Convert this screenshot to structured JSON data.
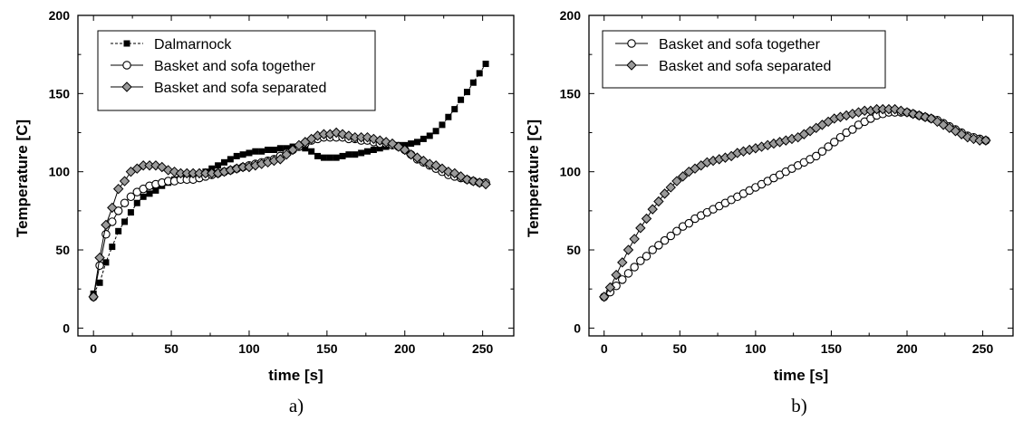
{
  "chart_data": [
    {
      "type": "line",
      "panel_label": "a)",
      "xlabel": "time [s]",
      "ylabel": "Temperature [C]",
      "xlim": [
        -10,
        270
      ],
      "ylim": [
        -5,
        200
      ],
      "xticks": [
        0,
        50,
        100,
        150,
        200,
        250
      ],
      "yticks": [
        0,
        50,
        100,
        150,
        200
      ],
      "grid": false,
      "legend_position": "top-left",
      "series": [
        {
          "name": "Dalmarnock",
          "marker": "square",
          "line_style": "dashed",
          "x": [
            0,
            4,
            8,
            12,
            16,
            20,
            24,
            28,
            32,
            36,
            40,
            44,
            48,
            52,
            56,
            60,
            64,
            68,
            72,
            76,
            80,
            84,
            88,
            92,
            96,
            100,
            104,
            108,
            112,
            116,
            120,
            124,
            128,
            132,
            136,
            140,
            144,
            148,
            152,
            156,
            160,
            164,
            168,
            172,
            176,
            180,
            184,
            188,
            192,
            196,
            200,
            204,
            208,
            212,
            216,
            220,
            224,
            228,
            232,
            236,
            240,
            244,
            248,
            252
          ],
          "y": [
            22,
            29,
            42,
            52,
            62,
            68,
            74,
            80,
            84,
            86,
            88,
            91,
            93,
            95,
            96,
            96,
            97,
            98,
            100,
            102,
            104,
            106,
            108,
            110,
            111,
            112,
            113,
            113,
            114,
            114,
            115,
            115,
            116,
            116,
            115,
            113,
            110,
            109,
            109,
            109,
            110,
            111,
            111,
            112,
            113,
            114,
            115,
            116,
            117,
            117,
            117,
            118,
            119,
            121,
            123,
            126,
            130,
            135,
            140,
            146,
            151,
            157,
            163,
            169
          ]
        },
        {
          "name": "Basket and sofa together",
          "marker": "open-circle",
          "line_style": "solid",
          "x": [
            0,
            4,
            8,
            12,
            16,
            20,
            24,
            28,
            32,
            36,
            40,
            44,
            48,
            52,
            56,
            60,
            64,
            68,
            72,
            76,
            80,
            84,
            88,
            92,
            96,
            100,
            104,
            108,
            112,
            116,
            120,
            124,
            128,
            132,
            136,
            140,
            144,
            148,
            152,
            156,
            160,
            164,
            168,
            172,
            176,
            180,
            184,
            188,
            192,
            196,
            200,
            204,
            208,
            212,
            216,
            220,
            224,
            228,
            232,
            236,
            240,
            244,
            248,
            252
          ],
          "y": [
            20,
            40,
            60,
            68,
            75,
            80,
            84,
            87,
            89,
            91,
            92,
            93,
            94,
            94,
            95,
            95,
            95,
            96,
            97,
            98,
            99,
            100,
            101,
            102,
            103,
            104,
            105,
            106,
            107,
            108,
            110,
            112,
            114,
            116,
            118,
            120,
            121,
            122,
            122,
            122,
            122,
            121,
            121,
            120,
            120,
            119,
            118,
            118,
            117,
            116,
            114,
            111,
            108,
            106,
            104,
            102,
            100,
            98,
            97,
            96,
            95,
            94,
            93,
            93
          ]
        },
        {
          "name": "Basket and sofa separated",
          "marker": "gray-diamond",
          "line_style": "solid",
          "x": [
            0,
            4,
            8,
            12,
            16,
            20,
            24,
            28,
            32,
            36,
            40,
            44,
            48,
            52,
            56,
            60,
            64,
            68,
            72,
            76,
            80,
            84,
            88,
            92,
            96,
            100,
            104,
            108,
            112,
            116,
            120,
            124,
            128,
            132,
            136,
            140,
            144,
            148,
            152,
            156,
            160,
            164,
            168,
            172,
            176,
            180,
            184,
            188,
            192,
            196,
            200,
            204,
            208,
            212,
            216,
            220,
            224,
            228,
            232,
            236,
            240,
            244,
            248,
            252
          ],
          "y": [
            20,
            45,
            66,
            77,
            89,
            94,
            100,
            102,
            104,
            104,
            104,
            103,
            101,
            100,
            99,
            99,
            99,
            99,
            99,
            99,
            99,
            100,
            101,
            102,
            103,
            103,
            104,
            105,
            106,
            107,
            108,
            111,
            114,
            117,
            119,
            121,
            123,
            124,
            124,
            125,
            124,
            123,
            122,
            122,
            122,
            121,
            120,
            119,
            118,
            116,
            114,
            111,
            109,
            107,
            105,
            104,
            102,
            100,
            99,
            97,
            95,
            94,
            93,
            92
          ]
        }
      ]
    },
    {
      "type": "line",
      "panel_label": "b)",
      "xlabel": "time [s]",
      "ylabel": "Temperature [C]",
      "xlim": [
        -10,
        270
      ],
      "ylim": [
        -5,
        200
      ],
      "xticks": [
        0,
        50,
        100,
        150,
        200,
        250
      ],
      "yticks": [
        0,
        50,
        100,
        150,
        200
      ],
      "grid": false,
      "legend_position": "top-left",
      "series": [
        {
          "name": "Basket and sofa together",
          "marker": "open-circle",
          "line_style": "solid",
          "x": [
            0,
            4,
            8,
            12,
            16,
            20,
            24,
            28,
            32,
            36,
            40,
            44,
            48,
            52,
            56,
            60,
            64,
            68,
            72,
            76,
            80,
            84,
            88,
            92,
            96,
            100,
            104,
            108,
            112,
            116,
            120,
            124,
            128,
            132,
            136,
            140,
            144,
            148,
            152,
            156,
            160,
            164,
            168,
            172,
            176,
            180,
            184,
            188,
            192,
            196,
            200,
            204,
            208,
            212,
            216,
            220,
            224,
            228,
            232,
            236,
            240,
            244,
            248,
            252
          ],
          "y": [
            20,
            23,
            27,
            31,
            35,
            39,
            43,
            46,
            50,
            53,
            56,
            59,
            62,
            65,
            67,
            70,
            72,
            74,
            76,
            78,
            80,
            82,
            84,
            86,
            88,
            90,
            92,
            94,
            96,
            98,
            100,
            102,
            104,
            106,
            108,
            110,
            113,
            116,
            119,
            122,
            125,
            127,
            130,
            132,
            134,
            136,
            137,
            138,
            138,
            138,
            138,
            137,
            136,
            135,
            134,
            133,
            131,
            129,
            127,
            125,
            123,
            122,
            121,
            120
          ]
        },
        {
          "name": "Basket and sofa separated",
          "marker": "gray-diamond",
          "line_style": "solid",
          "x": [
            0,
            4,
            8,
            12,
            16,
            20,
            24,
            28,
            32,
            36,
            40,
            44,
            48,
            52,
            56,
            60,
            64,
            68,
            72,
            76,
            80,
            84,
            88,
            92,
            96,
            100,
            104,
            108,
            112,
            116,
            120,
            124,
            128,
            132,
            136,
            140,
            144,
            148,
            152,
            156,
            160,
            164,
            168,
            172,
            176,
            180,
            184,
            188,
            192,
            196,
            200,
            204,
            208,
            212,
            216,
            220,
            224,
            228,
            232,
            236,
            240,
            244,
            248,
            252
          ],
          "y": [
            20,
            26,
            34,
            42,
            50,
            57,
            64,
            70,
            76,
            81,
            86,
            90,
            94,
            97,
            100,
            102,
            104,
            106,
            107,
            108,
            109,
            110,
            112,
            113,
            114,
            115,
            116,
            117,
            118,
            119,
            120,
            121,
            122,
            124,
            126,
            128,
            130,
            132,
            134,
            135,
            136,
            137,
            138,
            139,
            139,
            140,
            140,
            140,
            140,
            139,
            138,
            137,
            136,
            135,
            134,
            132,
            130,
            128,
            126,
            124,
            122,
            121,
            120,
            120
          ]
        }
      ]
    }
  ]
}
